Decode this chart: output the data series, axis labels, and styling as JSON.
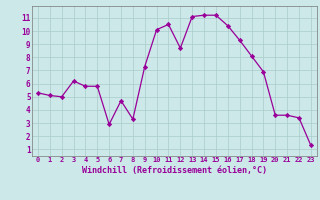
{
  "x": [
    0,
    1,
    2,
    3,
    4,
    5,
    6,
    7,
    8,
    9,
    10,
    11,
    12,
    13,
    14,
    15,
    16,
    17,
    18,
    19,
    20,
    21,
    22,
    23
  ],
  "y": [
    5.3,
    5.1,
    5.0,
    6.2,
    5.8,
    5.8,
    2.9,
    4.7,
    3.3,
    7.3,
    10.1,
    10.5,
    8.7,
    11.1,
    11.2,
    11.2,
    10.4,
    9.3,
    8.1,
    6.9,
    3.6,
    3.6,
    3.4,
    1.3
  ],
  "line_color": "#990099",
  "marker": "D",
  "marker_size": 2.2,
  "bg_color": "#cce8e8",
  "grid_color": "#aacccc",
  "xlabel": "Windchill (Refroidissement éolien,°C)",
  "xlabel_color": "#990099",
  "xlim": [
    -0.5,
    23.5
  ],
  "ylim": [
    0.5,
    11.9
  ],
  "ytick_values": [
    1,
    2,
    3,
    4,
    5,
    6,
    7,
    8,
    9,
    10,
    11
  ],
  "tick_color": "#990099",
  "spine_color": "#777777"
}
